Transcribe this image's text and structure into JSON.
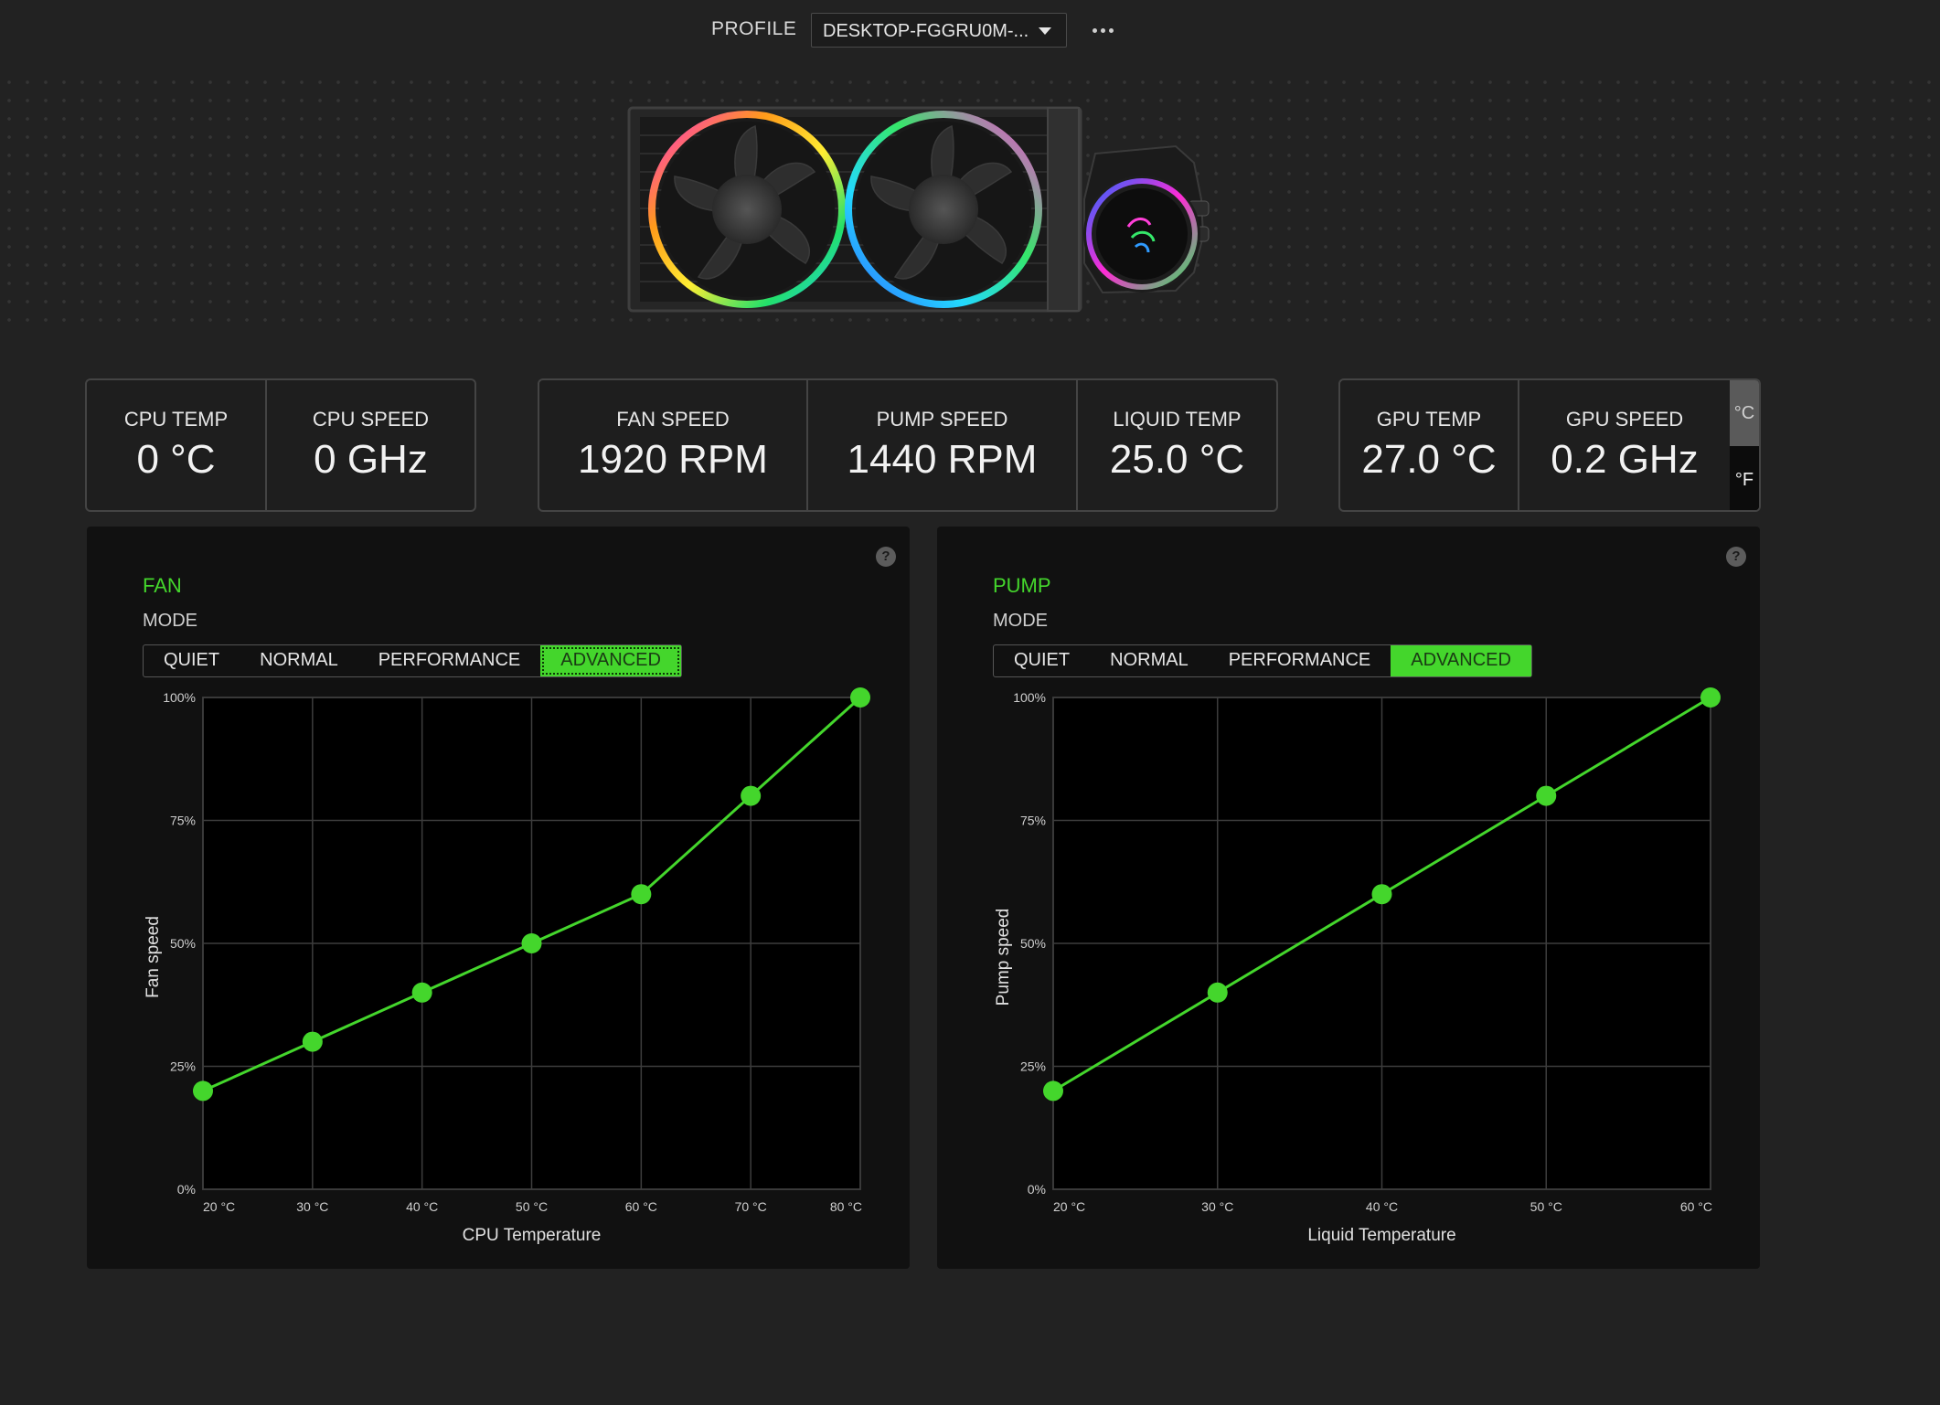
{
  "profile": {
    "label": "PROFILE",
    "value": "DESKTOP-FGGRU0M-..."
  },
  "stats": {
    "cpu_temp": {
      "label": "CPU TEMP",
      "value": "0 °C"
    },
    "cpu_speed": {
      "label": "CPU SPEED",
      "value": "0 GHz"
    },
    "fan_speed": {
      "label": "FAN SPEED",
      "value": "1920 RPM"
    },
    "pump_speed": {
      "label": "PUMP SPEED",
      "value": "1440 RPM"
    },
    "liquid_temp": {
      "label": "LIQUID TEMP",
      "value": "25.0 °C"
    },
    "gpu_temp": {
      "label": "GPU TEMP",
      "value": "27.0 °C"
    },
    "gpu_speed": {
      "label": "GPU SPEED",
      "value": "0.2 GHz"
    }
  },
  "units": {
    "celsius": "°C",
    "fahrenheit": "°F"
  },
  "colors": {
    "accent": "#44d62c"
  },
  "fan": {
    "title": "FAN",
    "mode_label": "MODE",
    "modes": [
      "QUIET",
      "NORMAL",
      "PERFORMANCE",
      "ADVANCED"
    ],
    "active_mode": "ADVANCED"
  },
  "pump": {
    "title": "PUMP",
    "mode_label": "MODE",
    "modes": [
      "QUIET",
      "NORMAL",
      "PERFORMANCE",
      "ADVANCED"
    ],
    "active_mode": "ADVANCED"
  },
  "help_icon": "?",
  "chart_data": [
    {
      "type": "line",
      "id": "fan",
      "x": [
        20,
        30,
        40,
        50,
        60,
        70,
        80
      ],
      "x_tick_labels": [
        "20 °C",
        "30 °C",
        "40 °C",
        "50 °C",
        "60 °C",
        "70 °C",
        "80 °C"
      ],
      "y_tick_labels": [
        "0%",
        "25%",
        "50%",
        "75%",
        "100%"
      ],
      "values": [
        20,
        30,
        40,
        50,
        60,
        80,
        100
      ],
      "xlabel": "CPU Temperature",
      "ylabel": "Fan speed",
      "xlim": [
        20,
        80
      ],
      "ylim": [
        0,
        100
      ],
      "grid": true
    },
    {
      "type": "line",
      "id": "pump",
      "x": [
        20,
        30,
        40,
        50,
        60
      ],
      "x_tick_labels": [
        "20 °C",
        "30 °C",
        "40 °C",
        "50 °C",
        "60 °C"
      ],
      "y_tick_labels": [
        "0%",
        "25%",
        "50%",
        "75%",
        "100%"
      ],
      "values": [
        20,
        40,
        60,
        80,
        100
      ],
      "xlabel": "Liquid Temperature",
      "ylabel": "Pump speed",
      "xlim": [
        20,
        60
      ],
      "ylim": [
        0,
        100
      ],
      "grid": true
    }
  ]
}
